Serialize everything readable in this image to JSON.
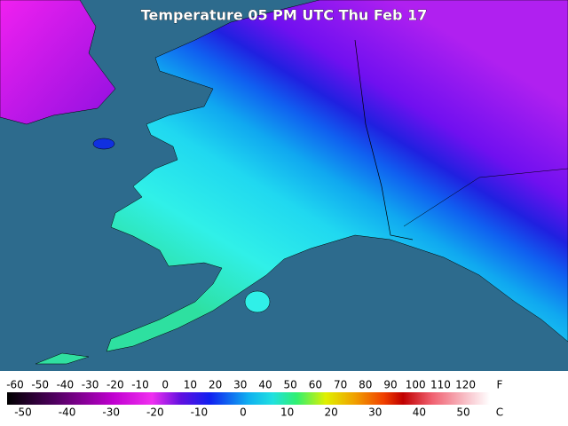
{
  "title": "Temperature 05 PM UTC Thu Feb 17",
  "legend": {
    "fahrenheit": {
      "unit": "F",
      "labels": [
        -60,
        -50,
        -40,
        -30,
        -20,
        -10,
        0,
        10,
        20,
        30,
        40,
        50,
        60,
        70,
        80,
        90,
        100,
        110,
        120
      ]
    },
    "celsius": {
      "unit": "C",
      "labels": [
        -50,
        -40,
        -30,
        -20,
        -10,
        0,
        10,
        20,
        30,
        40,
        50
      ]
    }
  }
}
